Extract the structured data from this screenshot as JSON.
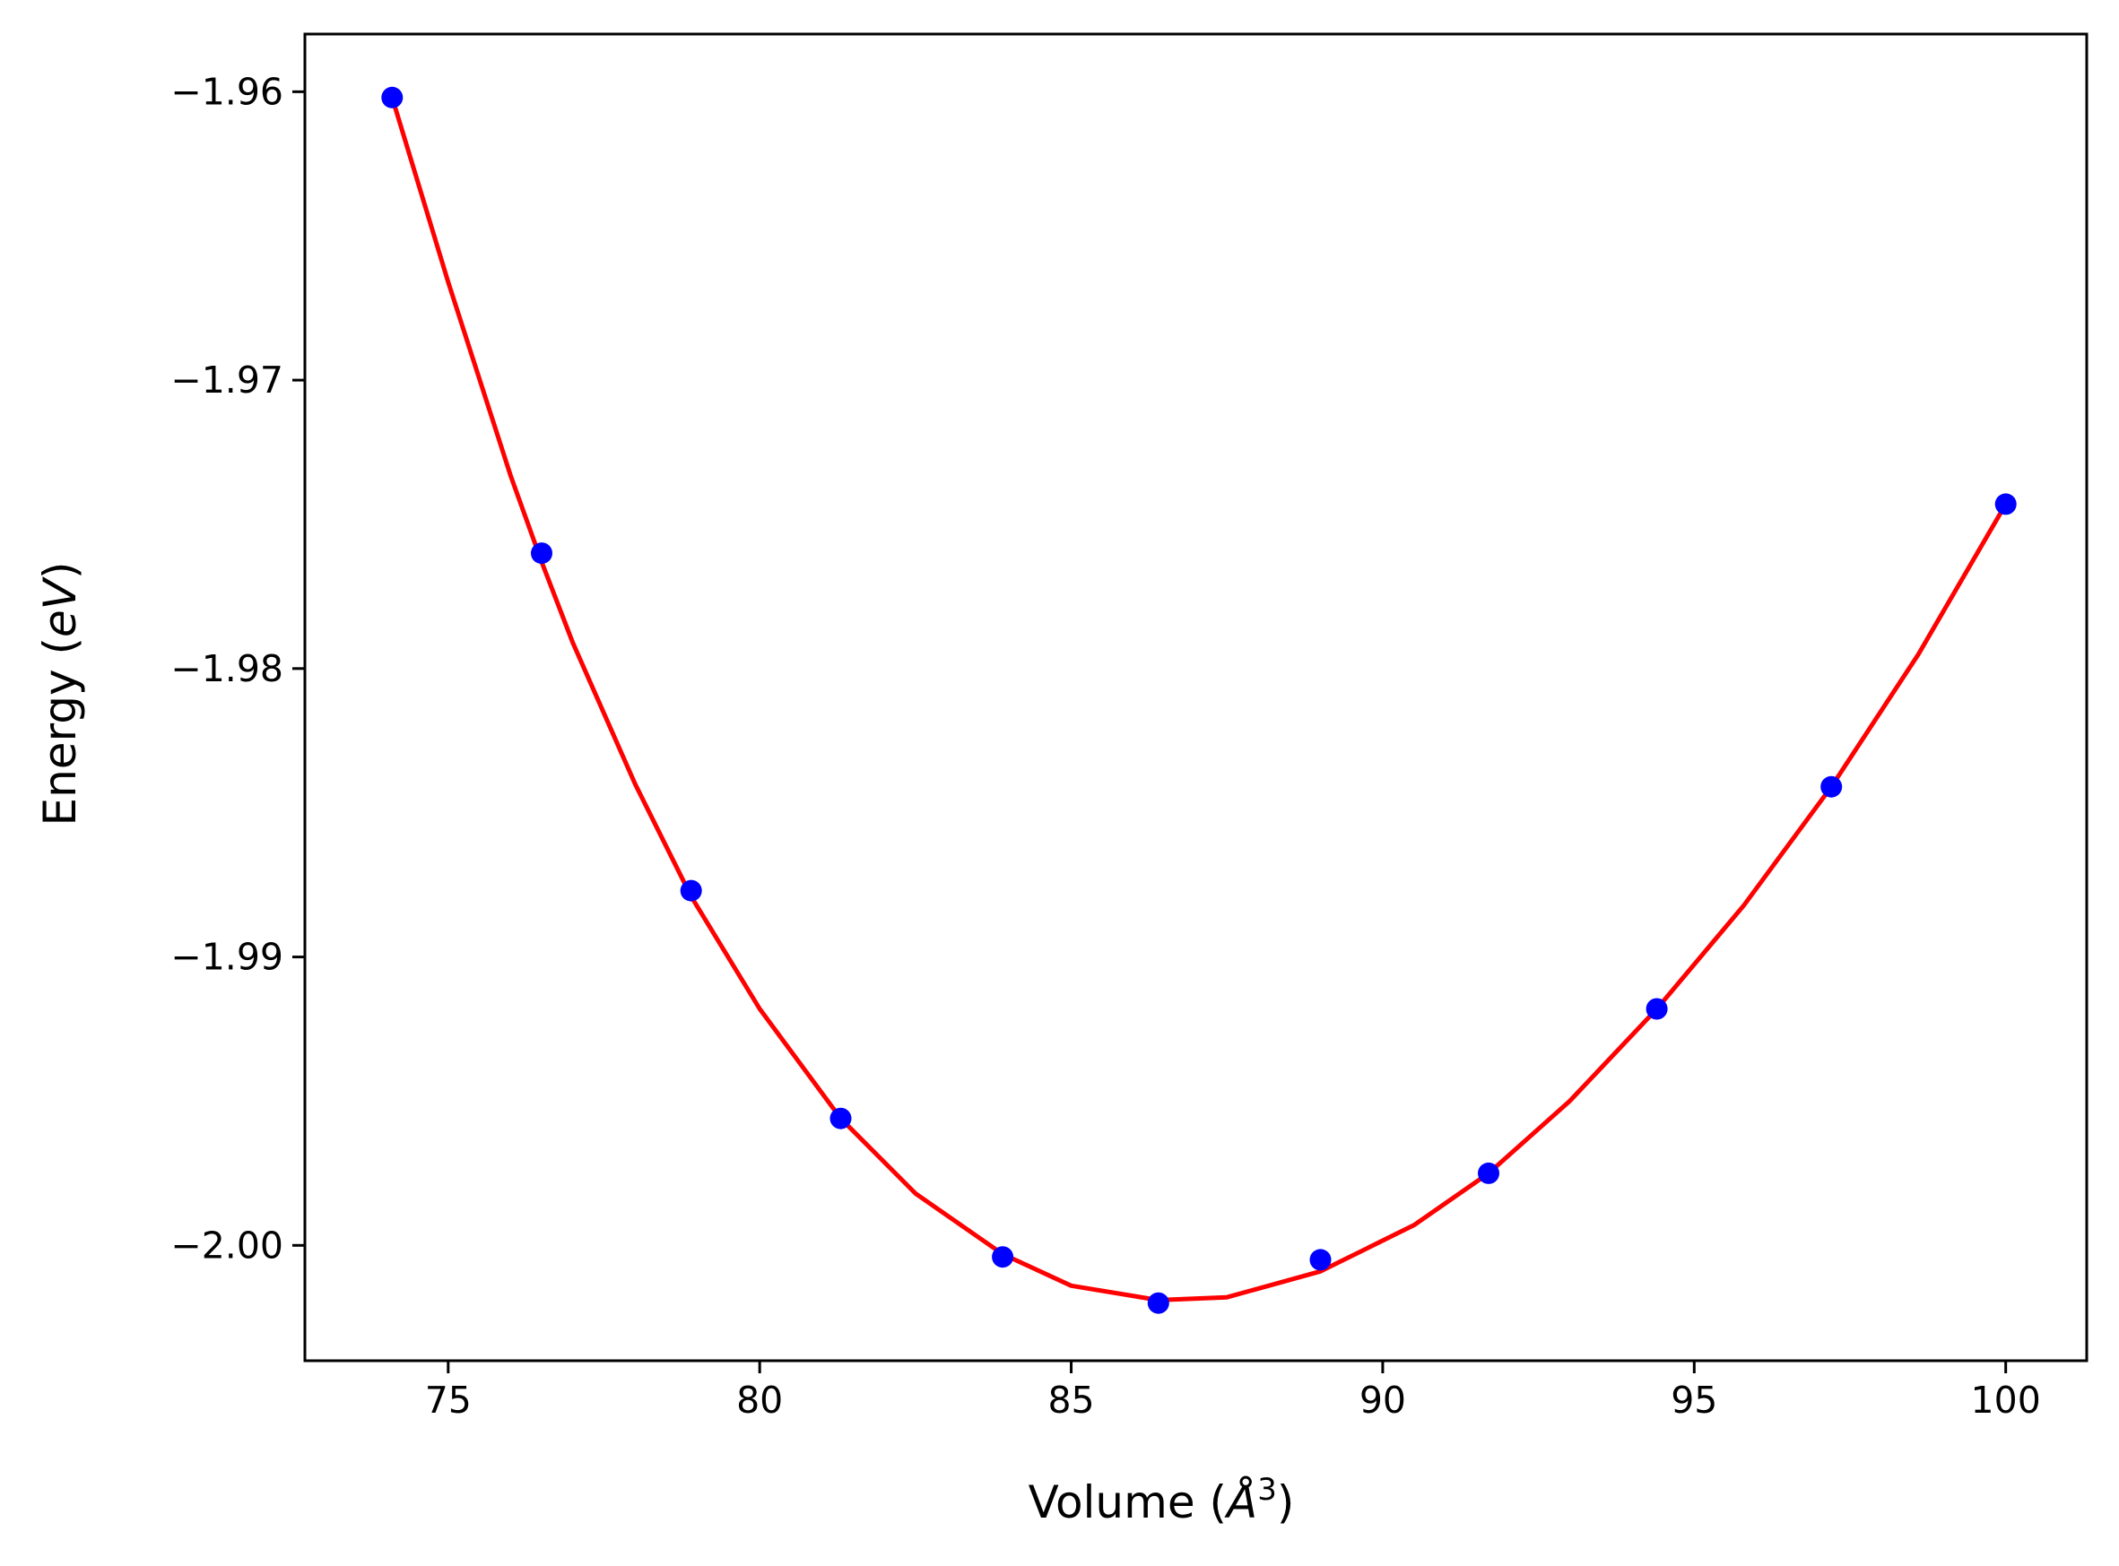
{
  "chart_data": {
    "type": "scatter",
    "xlabel": "Volume (Å³)",
    "xlabel_parts": {
      "text": "Volume (",
      "symbol": "Å",
      "exponent": "3",
      "close": ")"
    },
    "ylabel": "Energy (eV)",
    "ylabel_parts": {
      "text": "Energy (",
      "unit": "eV",
      "close": ")"
    },
    "xlim": [
      72.7,
      101.3
    ],
    "ylim": [
      -2.004,
      -1.958
    ],
    "xticks": [
      75,
      80,
      85,
      90,
      95,
      100
    ],
    "xtick_labels": [
      "75",
      "80",
      "85",
      "90",
      "95",
      "100"
    ],
    "yticks": [
      -1.96,
      -1.97,
      -1.98,
      -1.99,
      -2.0
    ],
    "ytick_labels": [
      "−1.96",
      "−1.97",
      "−1.98",
      "−1.99",
      "−2.00"
    ],
    "grid": false,
    "legend": "none",
    "series": [
      {
        "kind": "markers",
        "color": "#0000ff",
        "x": [
          74.1,
          76.5,
          78.9,
          81.3,
          83.9,
          86.4,
          89.0,
          91.7,
          94.4,
          97.2,
          100.0
        ],
        "y": [
          -1.9602,
          -1.976,
          -1.9877,
          -1.9956,
          -2.0004,
          -2.002,
          -2.0005,
          -1.9975,
          -1.9918,
          -1.9841,
          -1.9743
        ]
      },
      {
        "kind": "fit_line",
        "color": "#ff0000",
        "x": [
          74.1,
          75.0,
          76.0,
          76.5,
          77.0,
          78.0,
          78.9,
          80.0,
          81.3,
          82.5,
          83.9,
          85.0,
          86.4,
          87.5,
          89.0,
          90.5,
          91.7,
          93.0,
          94.4,
          95.8,
          97.2,
          98.6,
          100.0
        ],
        "y": [
          -1.9602,
          -1.9666,
          -1.9733,
          -1.9763,
          -1.9791,
          -1.984,
          -1.9879,
          -1.9918,
          -1.9956,
          -1.9982,
          -2.0003,
          -2.0014,
          -2.0019,
          -2.0018,
          -2.0009,
          -1.9993,
          -1.9975,
          -1.995,
          -1.9918,
          -1.9882,
          -1.9841,
          -1.9795,
          -1.9743
        ]
      }
    ]
  }
}
